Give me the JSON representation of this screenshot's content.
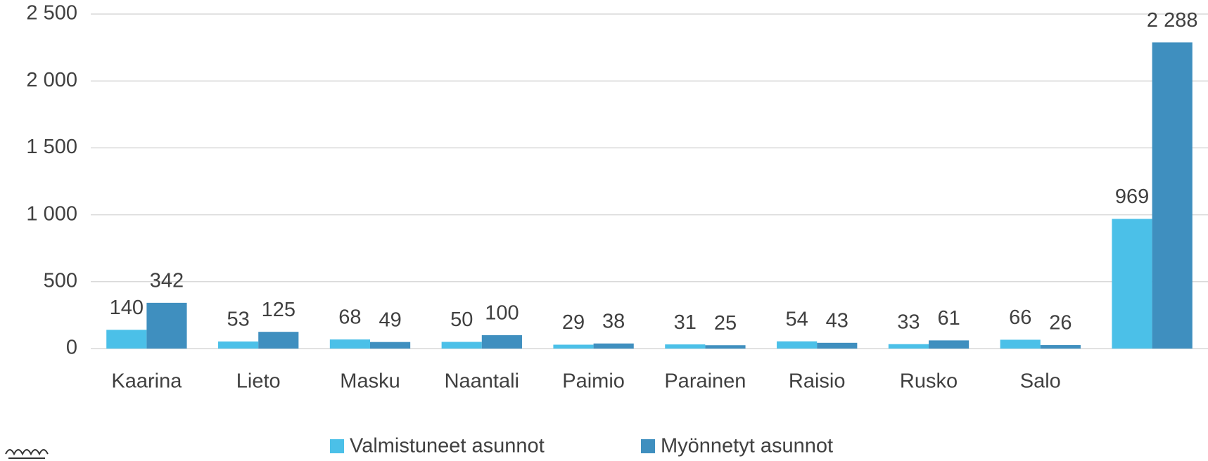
{
  "chart_data": {
    "type": "bar",
    "categories": [
      "Kaarina",
      "Lieto",
      "Masku",
      "Naantali",
      "Paimio",
      "Parainen",
      "Raisio",
      "Rusko",
      "Salo",
      null
    ],
    "series": [
      {
        "name": "Valmistuneet asunnot",
        "color": "#4bc0e8",
        "values": [
          140,
          53,
          68,
          50,
          29,
          31,
          54,
          33,
          66,
          969
        ]
      },
      {
        "name": "Myönnetyt asunnot",
        "color": "#3f8fbf",
        "values": [
          342,
          125,
          49,
          100,
          38,
          25,
          43,
          61,
          26,
          2288
        ],
        "value_labels": [
          "342",
          "125",
          "49",
          "100",
          "38",
          "25",
          "43",
          "61",
          "26",
          "2 288"
        ]
      }
    ],
    "ylim": [
      0,
      2500
    ],
    "yticks": [
      0,
      500,
      {
        "value": 1000,
        "label": "1 000"
      },
      {
        "value": 1500,
        "label": "1 500"
      },
      {
        "value": 2000,
        "label": "2 000"
      },
      {
        "value": 2500,
        "label": "2 500"
      }
    ],
    "grid": true,
    "legend": "bottom"
  }
}
